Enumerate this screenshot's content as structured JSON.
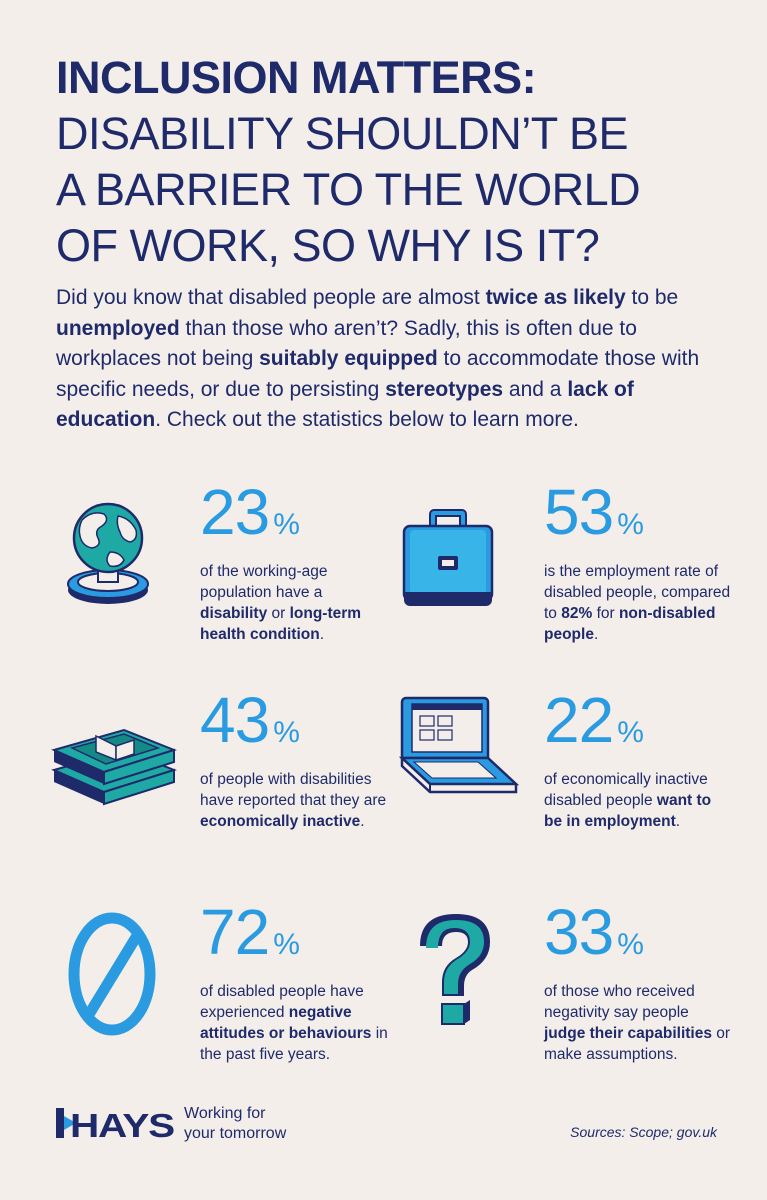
{
  "title": {
    "line1": "INCLUSION MATTERS:",
    "line2": "DISABILITY SHOULDN’T BE",
    "line3": "A BARRIER TO THE WORLD",
    "line4": "OF WORK, SO WHY IS IT?"
  },
  "intro": {
    "p1": "Did you know that disabled people are almost ",
    "b1": "twice as likely",
    "p2": " to be ",
    "b2": "unemployed",
    "p3": " than those who aren’t? Sadly, this is often due to workplaces not being ",
    "b3": "suitably equipped",
    "p4": " to accommodate those with specific needs, or due to persisting ",
    "b4": "stereotypes",
    "p5": " and a ",
    "b5": "lack of education",
    "p6": ". Check out the statistics below to learn more."
  },
  "stats": [
    {
      "number": "23",
      "percent": "%",
      "a": "of the working-age population have a ",
      "b": "disability",
      "c": " or ",
      "d": "long-term health condition",
      "e": "."
    },
    {
      "number": "53",
      "percent": "%",
      "a": "is the employment rate of disabled people, compared to ",
      "b": "82%",
      "c": " for ",
      "d": "non-disabled people",
      "e": "."
    },
    {
      "number": "43",
      "percent": "%",
      "a": "of people with disabilities have reported that they are ",
      "b": "economically inactive",
      "c": ".",
      "d": "",
      "e": ""
    },
    {
      "number": "22",
      "percent": "%",
      "a": "of economically inactive disabled people ",
      "b": "want to be in employment",
      "c": ".",
      "d": "",
      "e": ""
    },
    {
      "number": "72",
      "percent": "%",
      "a": "of disabled people have experienced ",
      "b": "negative attitudes or behaviours",
      "c": " in the past five years.",
      "d": "",
      "e": ""
    },
    {
      "number": "33",
      "percent": "%",
      "a": "of those who received negativity say people ",
      "b": "judge their capabilities",
      "c": " or make assumptions.",
      "d": "",
      "e": ""
    }
  ],
  "icons": [
    "globe-icon",
    "briefcase-icon",
    "money-stack-icon",
    "laptop-icon",
    "prohibited-icon",
    "question-mark-icon"
  ],
  "footer": {
    "logo": "HAYS",
    "tagline_line1": "Working for",
    "tagline_line2": "your tomorrow",
    "sources": "Sources: Scope; gov.uk"
  },
  "colors": {
    "navy": "#1f2a6b",
    "blue": "#2a9be0",
    "teal": "#1fa9a4",
    "background": "#f3eeea"
  }
}
